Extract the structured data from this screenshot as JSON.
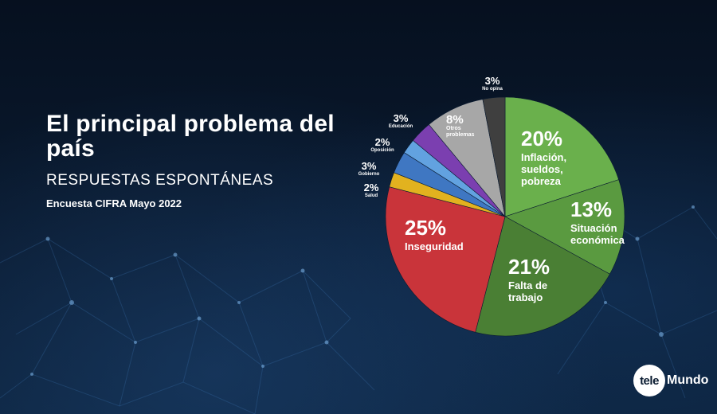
{
  "title": "El principal problema del país",
  "subtitle": "RESPUESTAS ESPONTÁNEAS",
  "source": "Encuesta CIFRA Mayo 2022",
  "brand": {
    "badge": "tele",
    "text": "Mundo"
  },
  "chart_data": {
    "type": "pie",
    "title": "El principal problema del país",
    "start_category": "Inflación, sueldos, pobreza",
    "slices": [
      {
        "label": "Inflación, sueldos, pobreza",
        "value": 20,
        "text": "20%",
        "color": "#6ab04c"
      },
      {
        "label": "Situación económica",
        "value": 13,
        "text": "13%",
        "color": "#5a9a40"
      },
      {
        "label": "Falta de trabajo",
        "value": 21,
        "text": "21%",
        "color": "#4a7f34"
      },
      {
        "label": "Inseguridad",
        "value": 25,
        "text": "25%",
        "color": "#c9343a"
      },
      {
        "label": "Salud",
        "value": 2,
        "text": "2%",
        "color": "#e2b21f"
      },
      {
        "label": "Gobierno",
        "value": 3,
        "text": "3%",
        "color": "#3f77c2"
      },
      {
        "label": "Oposición",
        "value": 2,
        "text": "2%",
        "color": "#62a2e0"
      },
      {
        "label": "Educación",
        "value": 3,
        "text": "3%",
        "color": "#7b3fb0"
      },
      {
        "label": "Otros problemas",
        "value": 8,
        "text": "8%",
        "color": "#a7a7a7"
      },
      {
        "label": "No opina",
        "value": 3,
        "text": "3%",
        "color": "#3f3f3f"
      }
    ]
  }
}
